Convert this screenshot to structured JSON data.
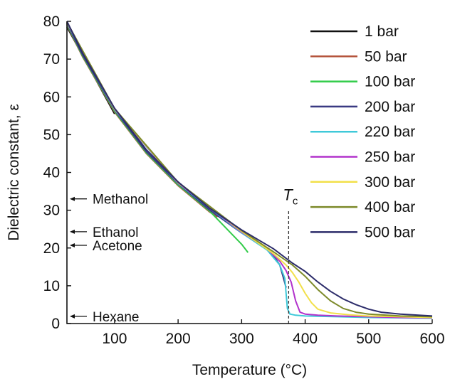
{
  "chart_data": {
    "type": "line",
    "xlabel": "Temperature (°C)",
    "ylabel": "Dielectric constant, ε",
    "xlim": [
      25,
      600
    ],
    "ylim": [
      0,
      80
    ],
    "xticks": [
      100,
      200,
      300,
      400,
      500,
      600
    ],
    "yticks": [
      0,
      10,
      20,
      30,
      40,
      50,
      60,
      70,
      80
    ],
    "grid": false,
    "legend_position": "top-right",
    "series": [
      {
        "name": "1 bar",
        "color": "#111111",
        "x": [
          25,
          100
        ],
        "y": [
          78.5,
          55.5
        ]
      },
      {
        "name": "50 bar",
        "color": "#b5553d",
        "x": [
          25,
          50,
          100,
          150,
          200,
          250,
          262
        ],
        "y": [
          79.0,
          70.5,
          56.0,
          45.0,
          36.5,
          29.5,
          28.2
        ]
      },
      {
        "name": "100 bar",
        "color": "#33cc4a",
        "x": [
          25,
          50,
          100,
          150,
          200,
          250,
          300,
          310
        ],
        "y": [
          79.2,
          70.7,
          56.2,
          45.2,
          36.7,
          29.7,
          21.0,
          18.8
        ]
      },
      {
        "name": "200 bar",
        "color": "#3a3a82",
        "x": [
          25,
          50,
          100,
          150,
          200,
          250,
          300,
          330,
          350,
          360,
          366,
          370
        ],
        "y": [
          79.4,
          71.0,
          56.5,
          45.5,
          37.0,
          30.0,
          24.0,
          21.0,
          18.0,
          15.5,
          12.0,
          9.5
        ]
      },
      {
        "name": "220 bar",
        "color": "#3fc9d9",
        "x": [
          25,
          100,
          200,
          300,
          340,
          360,
          368,
          372,
          376,
          385,
          400,
          450,
          500,
          550,
          600
        ],
        "y": [
          79.5,
          56.6,
          37.1,
          24.0,
          19.5,
          15.5,
          12.0,
          4.0,
          2.5,
          2.2,
          2.0,
          1.8,
          1.6,
          1.5,
          1.4
        ]
      },
      {
        "name": "250 bar",
        "color": "#b233cc",
        "x": [
          25,
          100,
          200,
          300,
          340,
          360,
          370,
          378,
          385,
          392,
          400,
          420,
          450,
          500,
          550,
          600
        ],
        "y": [
          79.6,
          56.7,
          37.2,
          24.2,
          19.8,
          16.5,
          14.0,
          11.0,
          6.0,
          3.0,
          2.5,
          2.2,
          2.0,
          1.8,
          1.6,
          1.5
        ]
      },
      {
        "name": "300 bar",
        "color": "#f2e04a",
        "x": [
          25,
          100,
          200,
          300,
          350,
          370,
          380,
          390,
          400,
          410,
          420,
          440,
          470,
          500,
          550,
          600
        ],
        "y": [
          79.7,
          56.8,
          37.3,
          24.4,
          18.5,
          15.5,
          13.5,
          11.0,
          8.0,
          5.5,
          3.8,
          2.8,
          2.3,
          2.0,
          1.8,
          1.6
        ]
      },
      {
        "name": "400 bar",
        "color": "#7d8a2a",
        "x": [
          25,
          100,
          200,
          300,
          350,
          380,
          400,
          420,
          440,
          460,
          480,
          500,
          550,
          600
        ],
        "y": [
          79.8,
          56.9,
          37.4,
          24.6,
          19.0,
          15.5,
          12.5,
          9.0,
          6.0,
          4.0,
          3.0,
          2.5,
          2.0,
          1.8
        ]
      },
      {
        "name": "500 bar",
        "color": "#2c2c6a",
        "x": [
          25,
          50,
          100,
          150,
          200,
          250,
          300,
          350,
          380,
          400,
          420,
          440,
          460,
          480,
          500,
          520,
          550,
          600
        ],
        "y": [
          80.0,
          71.5,
          57.0,
          46.0,
          37.5,
          30.5,
          24.8,
          19.8,
          16.0,
          13.8,
          11.0,
          8.5,
          6.5,
          5.0,
          3.8,
          3.0,
          2.5,
          2.0
        ]
      }
    ],
    "annotations": [
      {
        "text": "Methanol",
        "x": 25,
        "y": 33
      },
      {
        "text": "Ethanol",
        "x": 25,
        "y": 24.3
      },
      {
        "text": "Acetone",
        "x": 25,
        "y": 20.7
      },
      {
        "text": "Hexane",
        "x": 25,
        "y": 1.9
      },
      {
        "text": "T",
        "subscript": "c",
        "x": 374,
        "line_from": 0,
        "line_to": 30
      }
    ]
  }
}
